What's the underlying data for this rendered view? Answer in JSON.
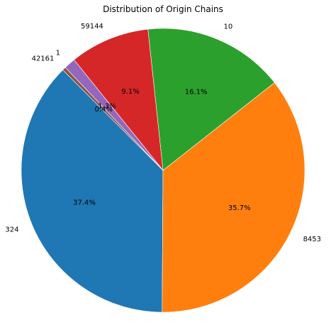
{
  "chart_data": {
    "type": "pie",
    "title": "Distribution of Origin Chains",
    "start_angle_deg": 135,
    "direction": "counterclockwise",
    "slices": [
      {
        "label": "324",
        "value": 37.4,
        "pct_label": "37.4%",
        "color": "#1f77b4"
      },
      {
        "label": "8453",
        "value": 35.7,
        "pct_label": "35.7%",
        "color": "#ff7f0e"
      },
      {
        "label": "10",
        "value": 16.1,
        "pct_label": "16.1%",
        "color": "#2ca02c"
      },
      {
        "label": "59144",
        "value": 9.1,
        "pct_label": "9.1%",
        "color": "#d62728"
      },
      {
        "label": "1",
        "value": 1.3,
        "pct_label": "1.3%",
        "color": "#9467bd"
      },
      {
        "label": "42161",
        "value": 0.4,
        "pct_label": "0.4%",
        "color": "#8c564b"
      }
    ]
  }
}
